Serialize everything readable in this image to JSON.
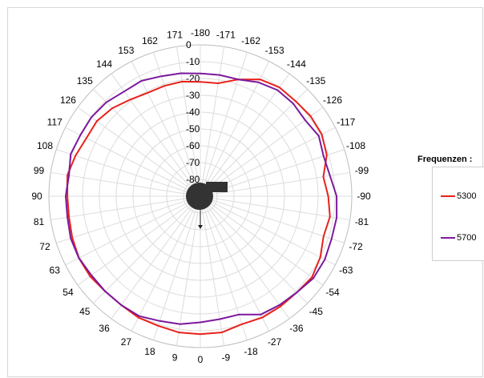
{
  "chart_data": {
    "type": "polar-line",
    "angle_labels": [
      "-180",
      "-171",
      "-162",
      "-153",
      "-144",
      "-135",
      "-126",
      "-117",
      "-108",
      "-99",
      "-90",
      "-81",
      "-72",
      "-63",
      "-54",
      "-45",
      "-36",
      "-27",
      "-18",
      "-9",
      "0",
      "9",
      "18",
      "27",
      "36",
      "45",
      "54",
      "63",
      "72",
      "81",
      "90",
      "99",
      "108",
      "117",
      "126",
      "135",
      "144",
      "153",
      "162",
      "171"
    ],
    "radial_axis": {
      "labels": [
        "0",
        "-10",
        "-20",
        "-30",
        "-40",
        "-50",
        "-60",
        "-70",
        "-80"
      ],
      "values": [
        0,
        -10,
        -20,
        -30,
        -40,
        -50,
        -60,
        -70,
        -80
      ],
      "range": [
        -90,
        0
      ]
    },
    "legend": {
      "title": "Frequenzen :",
      "placement": "right"
    },
    "series": [
      {
        "name": "5300",
        "color": "#e8211b",
        "values": [
          -22,
          -22,
          -17,
          -12,
          -10,
          -10,
          -9,
          -9,
          -11,
          -16,
          -14,
          -12,
          -13,
          -10,
          -8,
          -9,
          -9,
          -9,
          -10,
          -8,
          -8,
          -8,
          -9,
          -9,
          -10,
          -10,
          -9,
          -9,
          -10,
          -11,
          -11,
          -10,
          -12,
          -14,
          -14,
          -16,
          -19,
          -21,
          -21,
          -21
        ]
      },
      {
        "name": "5700",
        "color": "#7b199d",
        "values": [
          -17,
          -17,
          -17,
          -14,
          -12,
          -12,
          -13,
          -11,
          -13,
          -12,
          -9,
          -8,
          -8,
          -7,
          -7,
          -9,
          -10,
          -11,
          -16,
          -16,
          -15,
          -13,
          -12,
          -10,
          -10,
          -10,
          -10,
          -9,
          -9,
          -10,
          -10,
          -11,
          -9,
          -10,
          -10,
          -11,
          -13,
          -13,
          -15,
          -16
        ]
      }
    ]
  },
  "device_icon": "router-icon"
}
